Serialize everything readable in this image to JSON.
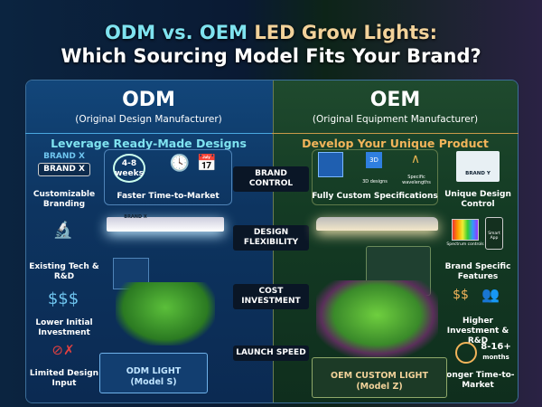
{
  "title": {
    "line1_part1": "ODM vs. OEM",
    "line1_part2": "LED Grow Lights:",
    "line2": "Which Sourcing Model Fits Your Brand?"
  },
  "odm": {
    "heading": "ODM",
    "subtitle": "(Original Design Manufacturer)",
    "tagline": "Leverage Ready-Made Designs",
    "brand_text": "BRAND X",
    "features": [
      "Customizable Branding",
      "Existing Tech & R&D",
      "Lower Initial Investment",
      "Limited Design Input"
    ],
    "time_box": {
      "value": "4-8",
      "unit": "weeks",
      "label": "Faster Time-to-Market"
    },
    "product": {
      "line1": "ODM LIGHT",
      "line2": "(Model S)"
    }
  },
  "oem": {
    "heading": "OEM",
    "subtitle": "(Original Equipment Manufacturer)",
    "tagline": "Develop Your Unique Product",
    "spec_box": {
      "icon1": "3D designs",
      "icon2": "Specific wavelengths",
      "label": "Fully Custom Specifications"
    },
    "brand_text": "BRAND Y",
    "features": [
      "Unique Design Control",
      "Brand Specific Features",
      "Higher Investment & R&D",
      "Longer Time-to-Market"
    ],
    "feature_sublabels": {
      "spectrum": "Spectrum controls",
      "app": "Smart App",
      "time_value": "8-16+",
      "time_unit": "months"
    },
    "product": {
      "line1": "OEM CUSTOM LIGHT",
      "line2": "(Model Z)"
    }
  },
  "criteria": [
    "BRAND CONTROL",
    "DESIGN FLEXIBILITY",
    "COST INVESTMENT",
    "LAUNCH SPEED"
  ],
  "colors": {
    "odm_accent": "#7fe3f0",
    "oem_accent": "#f2b45a"
  }
}
